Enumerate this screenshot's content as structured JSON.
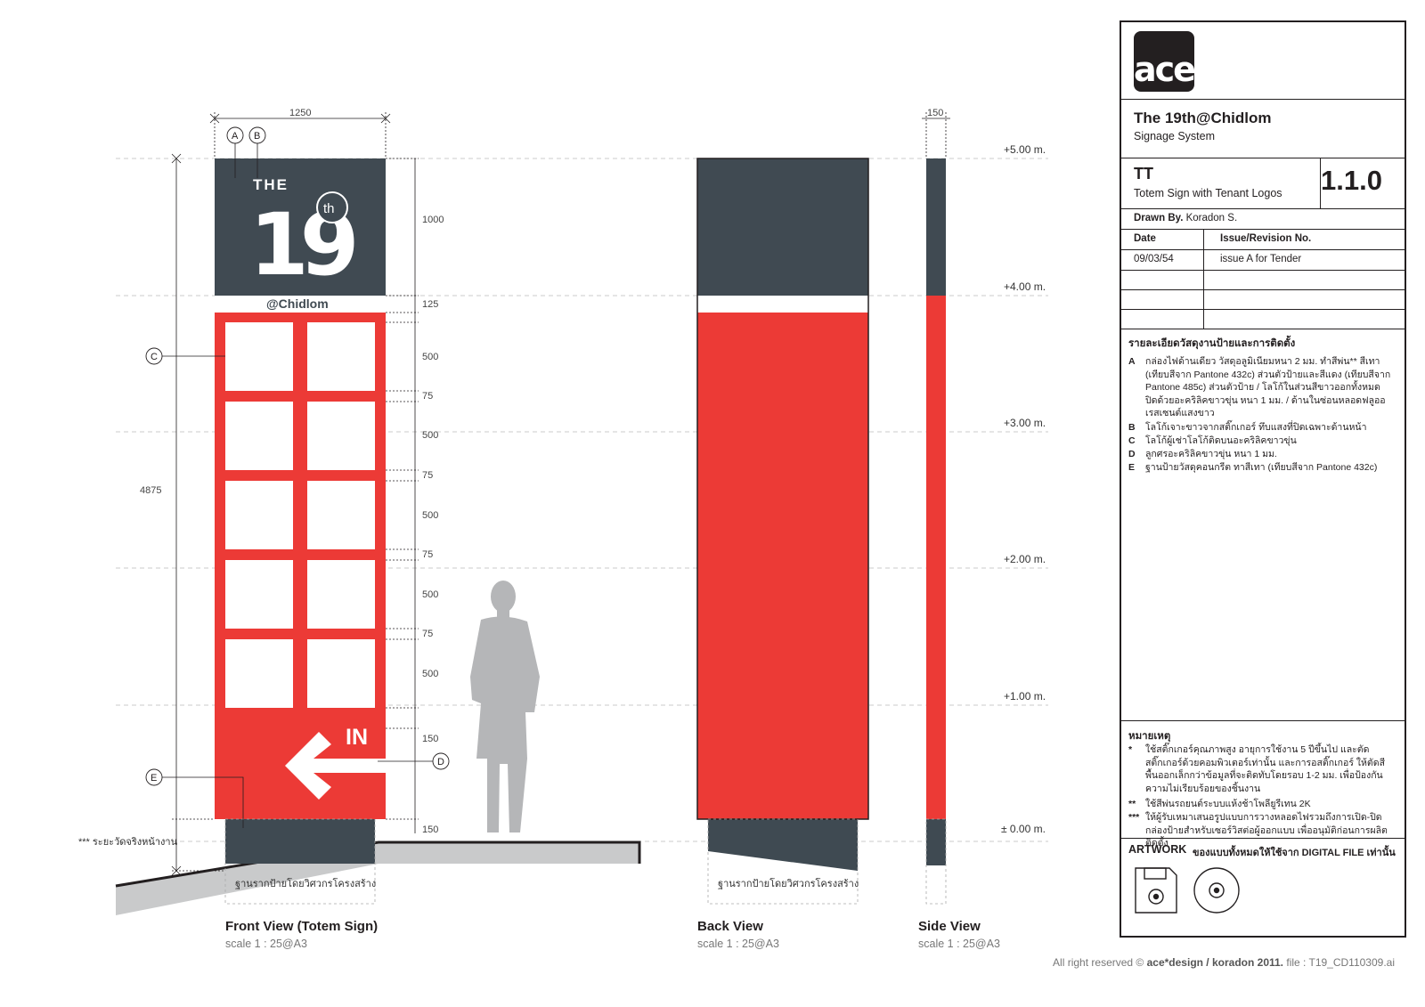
{
  "drawing": {
    "dimensions": {
      "width_front": "1250",
      "width_side": "150",
      "total_height": "4875",
      "segments": [
        "1000",
        "125",
        "500",
        "75",
        "500",
        "75",
        "500",
        "75",
        "500",
        "75",
        "500",
        "150",
        "150"
      ]
    },
    "callouts": [
      "A",
      "B",
      "C",
      "D",
      "E"
    ],
    "levels": [
      "+5.00 m.",
      "+4.00 m.",
      "+3.00 m.",
      "+2.00 m.",
      "+1.00 m.",
      "± 0.00 m."
    ],
    "sign_graphics": {
      "the_text": "THE",
      "number": "19",
      "th_text": "th",
      "at_text": "@Chidlom",
      "in_text": "IN"
    },
    "ground_note": "*** ระยะวัดจริงหน้างาน",
    "foundation_label": "ฐานรากป้ายโดยวิศวกรโครงสร้าง",
    "views": [
      {
        "title": "Front View (Totem Sign)",
        "scale": "scale 1 : 25@A3"
      },
      {
        "title": "Back View",
        "scale": "scale 1 : 25@A3"
      },
      {
        "title": "Side View",
        "scale": "scale 1 : 25@A3"
      }
    ],
    "colors": {
      "panel_grey": "#404a52",
      "sign_red": "#ec3a36",
      "base_grey": "#3f4a52",
      "ground_grey": "#c9cacb",
      "figure_grey": "#b5b6b8"
    },
    "icons": [
      "floppy-disk-icon",
      "cd-icon",
      "arrow-left-icon",
      "human-figure-icon"
    ]
  },
  "titleblock": {
    "logo": {
      "text": "ace",
      "mark": "*"
    },
    "project": "The 19th@Chidlom",
    "project_sub": "Signage System",
    "code": "TT",
    "code_name": "Totem Sign with Tenant Logos",
    "number": "1.1.0",
    "drawn_by_label": "Drawn By.",
    "drawn_by": "Koradon S.",
    "date_label": "Date",
    "issue_label": "Issue/Revision No.",
    "date_value": "09/03/54",
    "issue_value": "issue A for Tender",
    "notes_title": "รายละเอียดวัสดุงานป้ายและการติดตั้ง",
    "notes": [
      {
        "key": "A",
        "text": "กล่องไฟด้านเดียว วัสดุอลูมิเนียมหนา 2 มม. ทำสีพ่น** สีเทา (เทียบสีจาก Pantone 432c) ส่วนตัวป้ายและสีแดง (เทียบสีจาก Pantone 485c) ส่วนตัวป้าย / โลโก้ในส่วนสีขาวออกทั้งหมด ปิดด้วยอะคริลิคขาวขุ่น หนา 1 มม. / ด้านในซ่อนหลอดฟลูออเรสเซนต์แสงขาว"
      },
      {
        "key": "B",
        "text": "โลโก้เจาะขาวจากสติ๊กเกอร์ ทึบแสงที่ปิดเฉพาะด้านหน้า"
      },
      {
        "key": "C",
        "text": "โลโก้ผู้เช่าโลโก้ติดบนอะคริลิคขาวขุ่น"
      },
      {
        "key": "D",
        "text": "ลูกศรอะคริลิคขาวขุ่น หนา 1 มม."
      },
      {
        "key": "E",
        "text": "ฐานป้ายวัสดุคอนกรีต ทาสีเทา (เทียบสีจาก Pantone 432c)"
      }
    ],
    "remarks_title": "หมายเหตุ",
    "remarks": [
      {
        "key": "*",
        "text": "ใช้สติ๊กเกอร์คุณภาพสูง อายุการใช้งาน 5 ปีขึ้นไป และตัดสติ๊กเกอร์ด้วยคอมพิวเตอร์เท่านั้น และการอสติ๊กเกอร์ ให้ตัดสีพื้นออกเล็กกว่าข้อมูลที่จะติดทับโดยรอบ 1-2 มม. เพื่อป้องกันความไม่เรียบร้อยของชิ้นงาน"
      },
      {
        "key": "**",
        "text": "ใช้สีพ่นรถยนต์ระบบแห้งช้าโพลียูรีเทน 2K"
      },
      {
        "key": "***",
        "text": "ให้ผู้รับเหมาเสนอรูปแบบการวางหลอดไฟรวมถึงการเปิด-ปิดกล่องป้ายสำหรับเซอร์วิสต่อผู้ออกแบบ เพื่ออนุมัติก่อนการผลิตติดตั้ง"
      }
    ],
    "artwork_label": "ARTWORK",
    "artwork_note": "ของแบบทั้งหมดให้ใช้จาก DIGITAL FILE เท่านั้น"
  },
  "footer": {
    "prefix": "All right reserved ©",
    "owner": "ace*design / koradon 2011.",
    "file": "file : T19_CD110309.ai"
  }
}
